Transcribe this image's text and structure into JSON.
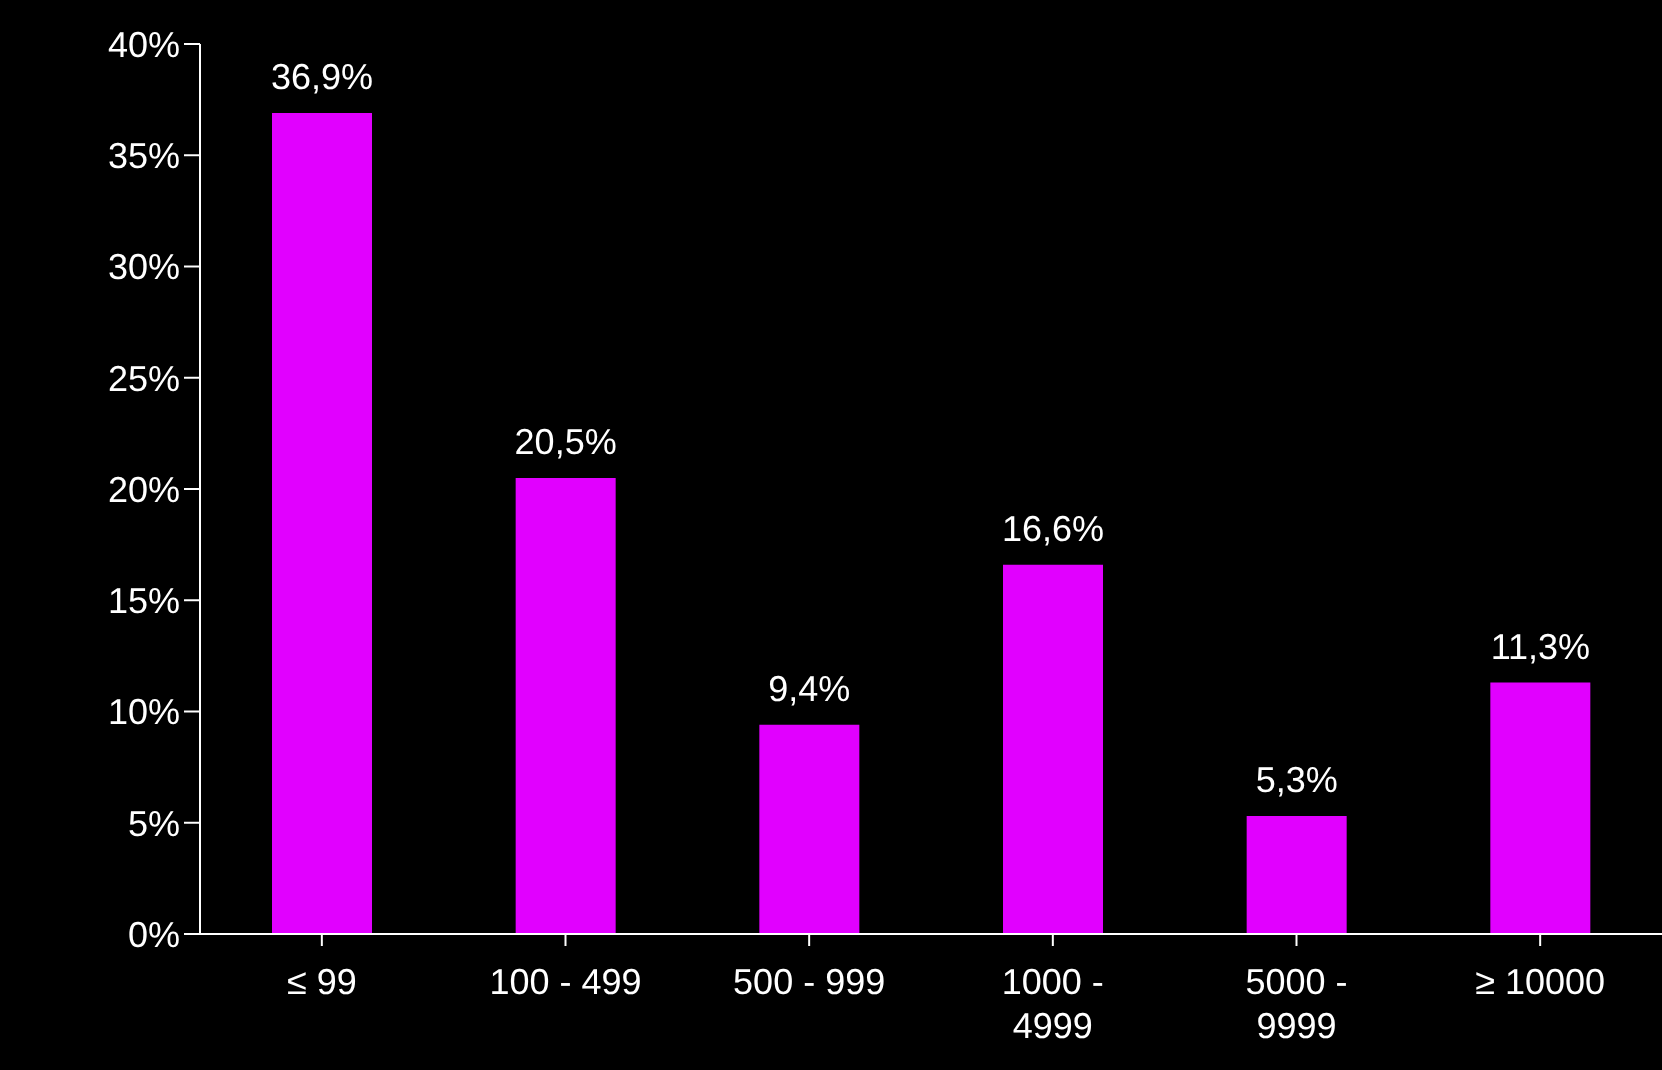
{
  "chart_data": {
    "type": "bar",
    "categories": [
      "≤ 99",
      "100 - 499",
      "500 - 999",
      "1000 - 4999",
      "5000 - 9999",
      "≥ 10000"
    ],
    "values": [
      36.9,
      20.5,
      9.4,
      16.6,
      5.3,
      11.3
    ],
    "value_labels": [
      "36,9%",
      "20,5%",
      "9,4%",
      "16,6%",
      "5,3%",
      "11,3%"
    ],
    "color": "#e100ff",
    "ylim": [
      0,
      40
    ],
    "yticks": [
      {
        "value": 0,
        "label": "0%"
      },
      {
        "value": 5,
        "label": "5%"
      },
      {
        "value": 10,
        "label": "10%"
      },
      {
        "value": 15,
        "label": "15%"
      },
      {
        "value": 20,
        "label": "20%"
      },
      {
        "value": 25,
        "label": "25%"
      },
      {
        "value": 30,
        "label": "30%"
      },
      {
        "value": 35,
        "label": "35%"
      },
      {
        "value": 40,
        "label": "40%"
      }
    ]
  }
}
